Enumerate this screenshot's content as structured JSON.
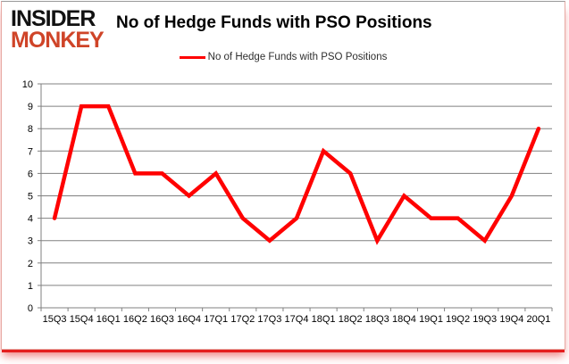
{
  "brand": {
    "line1": "INSIDER",
    "line2": "MONKEY",
    "line1_color": "#121212",
    "line2_color": "#cf4428"
  },
  "header": {
    "title": "No of Hedge Funds with PSO Positions"
  },
  "legend": {
    "label": "No of Hedge Funds with PSO Positions",
    "line_color": "#ff0000"
  },
  "chart_data": {
    "type": "line",
    "title": "No of Hedge Funds with PSO Positions",
    "categories": [
      "15Q3",
      "15Q4",
      "16Q1",
      "16Q2",
      "16Q3",
      "16Q4",
      "17Q1",
      "17Q2",
      "17Q3",
      "17Q4",
      "18Q1",
      "18Q2",
      "18Q3",
      "18Q4",
      "19Q1",
      "19Q2",
      "19Q3",
      "19Q4",
      "20Q1"
    ],
    "series": [
      {
        "name": "No of Hedge Funds with PSO Positions",
        "values": [
          4,
          9,
          9,
          6,
          6,
          5,
          6,
          4,
          3,
          4,
          7,
          6,
          3,
          5,
          4,
          4,
          3,
          5,
          8
        ],
        "color": "#ff0000"
      }
    ],
    "xlabel": "",
    "ylabel": "",
    "ylim": [
      0,
      10
    ],
    "ytick_step": 1,
    "grid": true,
    "gridline_color": "#808080",
    "axis_line_color": "#808080",
    "tick_label_color": "#000000",
    "tick_label_size": 11,
    "line_width": 4.5,
    "legend_position": "top"
  }
}
